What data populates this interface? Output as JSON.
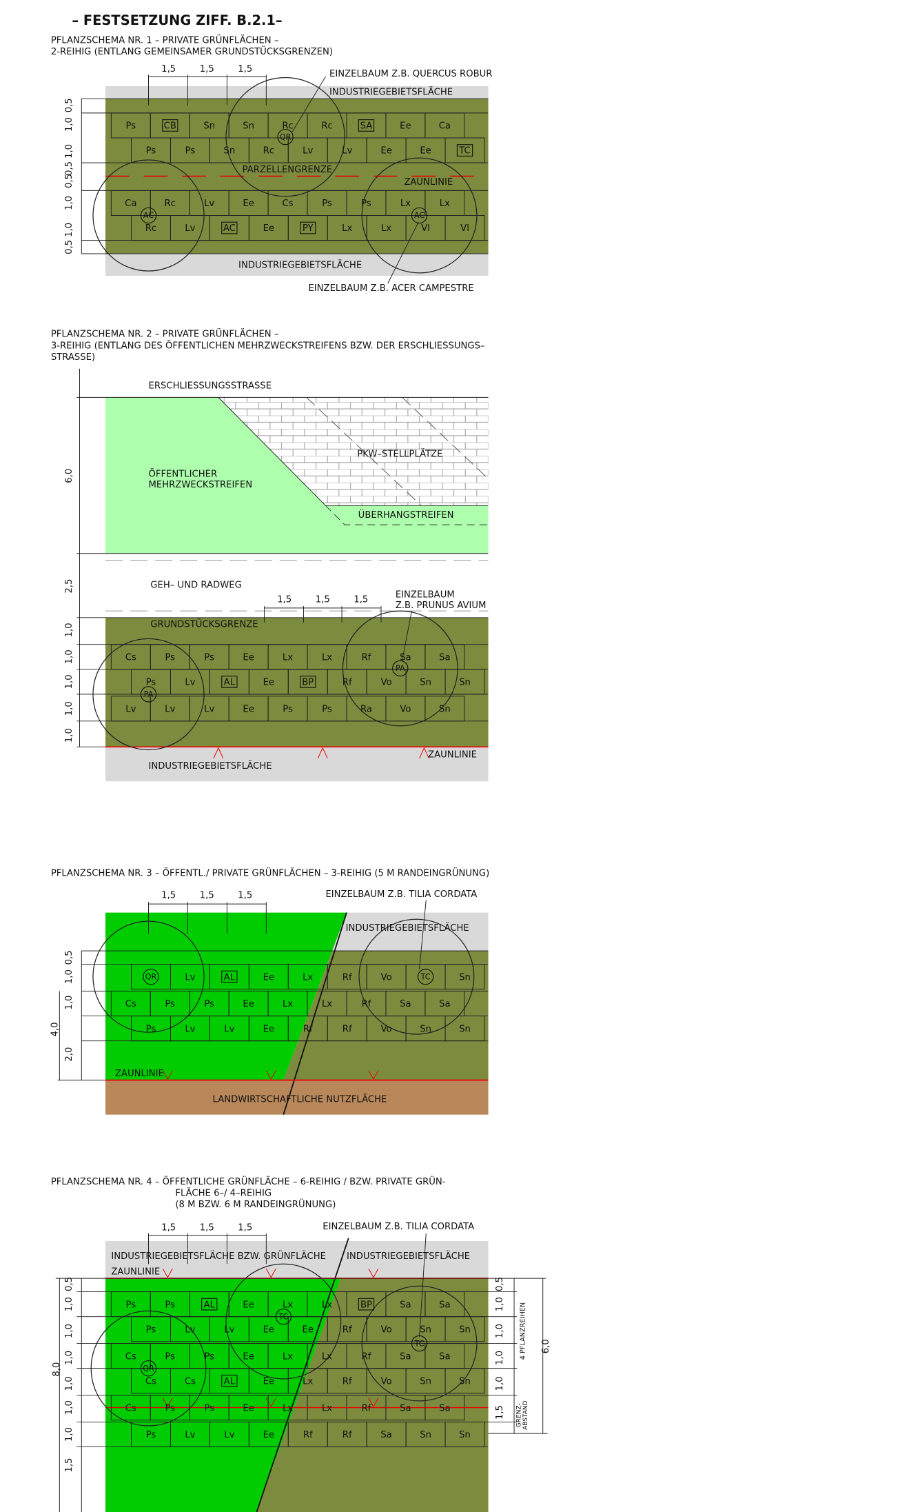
{
  "header": "– FESTSETZUNG ZIFF. B.2.1–",
  "schemas": [
    {
      "title": [
        "PFLANZSCHEMA NR. 1 – PRIVATE GRÜNFLÄCHEN –",
        "2-REIHIG (ENTLANG GEMEINSAMER GRUNDSTÜCKSGRENZEN)"
      ],
      "spacing": [
        "1,5",
        "1,5",
        "1,5"
      ],
      "labels": [
        "EINZELBAUM Z.B. QUERCUS ROBUR",
        "INDUSTRIEGEBIETSFLÄCHE",
        "PARZELLENGRENZE",
        "ZAUNLINIE",
        "INDUSTRIEGEBIETSFLÄCHE",
        "EINZELBAUM Z.B. ACER CAMPESTRE"
      ],
      "dims": [
        "0,5",
        "1,0",
        "1,0",
        "0,5",
        "0,5",
        "1,0",
        "1,0",
        "0,5"
      ],
      "rows": [
        [
          "Ps",
          {
            "text": "CB",
            "box": true
          },
          "Sn",
          "Sn",
          "Rc",
          "Rc",
          {
            "text": "SA",
            "box": true
          },
          "Ee",
          "Ca"
        ],
        [
          "Ps",
          "Ps",
          "Sn",
          "Rc",
          "Lv",
          "Lv",
          "Ee",
          "Ee",
          {
            "text": "TC",
            "box": true
          }
        ],
        [
          "Ca",
          "Rc",
          "Lv",
          "Ee",
          "Cs",
          "Ps",
          "Ps",
          "Lx",
          "Lx"
        ],
        [
          "Rc",
          "Lv",
          {
            "text": "AC",
            "box": true
          },
          "Ee",
          {
            "text": "PY",
            "box": true
          },
          "Lx",
          "Lx",
          "Vl",
          "Vl"
        ]
      ],
      "trees": [
        "QR",
        "AC",
        "AC"
      ]
    },
    {
      "title": [
        "PFLANZSCHEMA NR. 2 – PRIVATE GRÜNFLÄCHEN –",
        "3-REIHIG (ENTLANG DES ÖFFENTLICHEN MEHRZWECKSTREIFENS BZW. DER ERSCHLIESSUNGS–",
        "STRASSE)"
      ],
      "spacing": [
        "1,5",
        "1,5",
        "1,5"
      ],
      "labels": [
        "ERSCHLIESSUNGSSTRASSE",
        "ÖFFENTLICHER",
        "MEHRZWECKSTREIFEN",
        "PKW–STELLPLÄTZE",
        "ÜBERHANGSTREIFEN",
        "GEH– UND RADWEG",
        "EINZELBAUM",
        "Z.B. PRUNUS AVIUM",
        "GRUNDSTÜCKSGRENZE",
        "INDUSTRIEGEBIETSFLÄCHE",
        "ZAUNLINIE"
      ],
      "dims": [
        "6,0",
        "2,5",
        "1,0",
        "1,0",
        "1,0",
        "1,0",
        "1,0"
      ],
      "rows": [
        [
          "Cs",
          "Ps",
          "Ps",
          "Ee",
          "Lx",
          "Lx",
          "Rf",
          "Sa",
          "Sa"
        ],
        [
          "Ps",
          "Lv",
          {
            "text": "AL",
            "box": true
          },
          "Ee",
          {
            "text": "BP",
            "box": true
          },
          "Rf",
          "Vo",
          "Sn",
          "Sn"
        ],
        [
          "Lv",
          "Lv",
          "Lv",
          "Ee",
          "Ps",
          "Ps",
          "Ra",
          "Vo",
          "Sn"
        ]
      ],
      "trees": [
        "PA",
        "PA"
      ]
    },
    {
      "title": [
        "PFLANZSCHEMA NR. 3 – ÖFFENTL./ PRIVATE GRÜNFLÄCHEN – 3-REIHIG (5 M RANDEINGRÜNUNG)"
      ],
      "spacing": [
        "1,5",
        "1,5",
        "1,5"
      ],
      "labels": [
        "EINZELBAUM Z.B. TILIA CORDATA",
        "INDUSTRIEGEBIETSFLÄCHE",
        "ZAUNLINIE",
        "LANDWIRTSCHAFTLICHE NUTZFLÄCHE"
      ],
      "dims": [
        "0,5",
        "1,0",
        "1,0",
        "2,0",
        "4,0"
      ],
      "rows": [
        [
          {
            "text": "QR",
            "tree": true
          },
          "Lv",
          {
            "text": "AL",
            "box": true
          },
          "Ee",
          "Lx",
          "Rf",
          "Vo",
          {
            "text": "TC",
            "tree": true
          },
          "Sn"
        ],
        [
          "Cs",
          "Ps",
          "Ps",
          "Ee",
          "Lx",
          "Lx",
          "Rf",
          "Sa",
          "Sa"
        ],
        [
          "Ps",
          "Lv",
          "Lv",
          "Ee",
          "Rf",
          "Rf",
          "Vo",
          "Sn",
          "Sn"
        ]
      ],
      "trees": []
    },
    {
      "title": [
        "PFLANZSCHEMA NR. 4 – ÖFFENTLICHE GRÜNFLÄCHE – 6-REIHIG / BZW. PRIVATE GRÜN-",
        "FLÄCHE 6–/ 4–REIHIG",
        "(8 M BZW. 6 M RANDEINGRÜNUNG)"
      ],
      "spacing": [
        "1,5",
        "1,5",
        "1,5"
      ],
      "labels": [
        "EINZELBAUM Z.B. TILIA CORDATA",
        "INDUSTRIEGEBIETSFLÄCHE BZW. GRÜNFLÄCHE",
        "INDUSTRIEGEBIETSFLÄCHE",
        "ZAUNLINIE",
        "4 PFLANZREIHEN",
        "6,0",
        "GRENZ-",
        "ABSTAND"
      ],
      "dims": [
        "8,0",
        "0,5",
        "1,0",
        "1,0",
        "1,0",
        "1,0",
        "1,0",
        "1,0",
        "1,5",
        "0,5",
        "1,0",
        "1,0",
        "1,0",
        "1,0",
        "1,5"
      ],
      "rows": [
        [
          "Ps",
          "Ps",
          {
            "text": "AL",
            "box": true
          },
          "Ee",
          "Lx",
          "Lx",
          {
            "text": "BP",
            "box": true
          },
          "Sa",
          "Sa"
        ],
        [
          "Ps",
          "Lv",
          "Lv",
          "Ee",
          "Ee",
          "Rf",
          "Vo",
          "Sn",
          "Sn"
        ],
        [
          "Cs",
          "Ps",
          "Ps",
          "Ee",
          "Lx",
          "Lx",
          "Rf",
          "Sa",
          "Sa"
        ],
        [
          "Cs",
          "Cs",
          {
            "text": "AL",
            "box": true
          },
          "Ee",
          "Lx",
          "Rf",
          "Vo",
          "Sn",
          "Sn"
        ],
        [
          "Cs",
          "Ps",
          "Ps",
          "Ee",
          "Lx",
          "Lx",
          "Rf",
          "Sa",
          "Sa"
        ],
        [
          "Ps",
          "Lv",
          "Lv",
          "Ee",
          "Rf",
          "Rf",
          "Sa",
          "Sn",
          "Sn"
        ]
      ],
      "trees": [
        "TC",
        "TC",
        "QR"
      ]
    }
  ]
}
